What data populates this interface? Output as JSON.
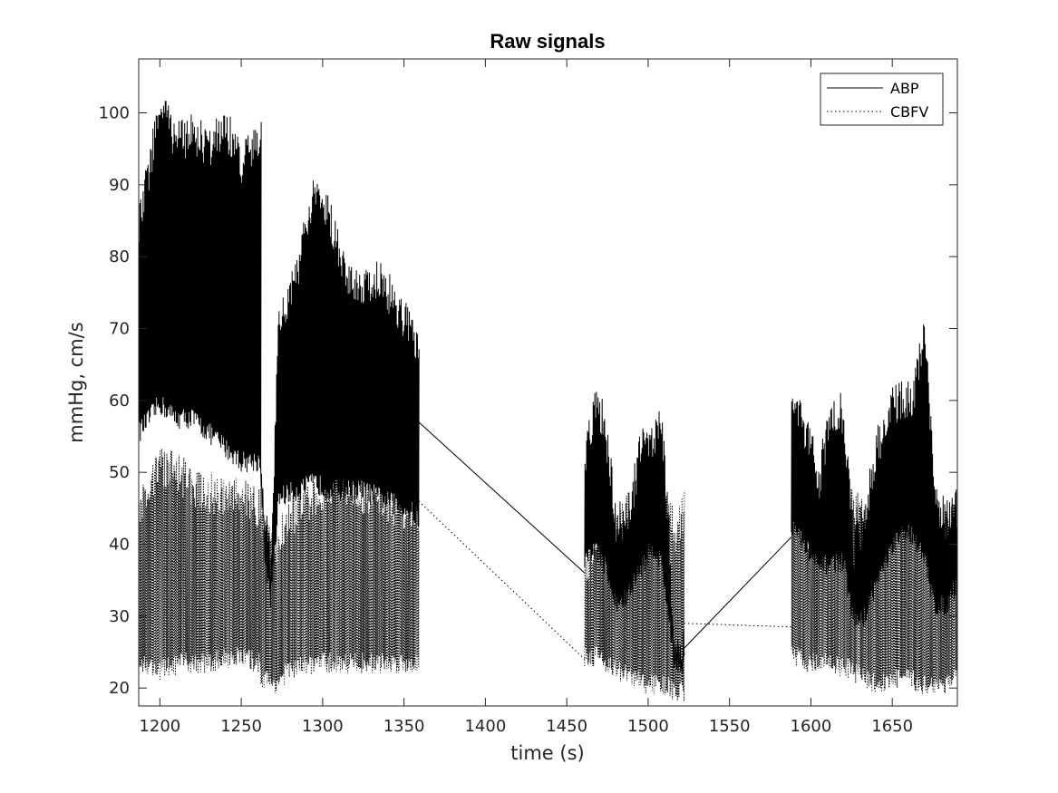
{
  "chart_data": {
    "type": "line",
    "title": "Raw signals",
    "xlabel": "time (s)",
    "ylabel": "mmHg, cm/s",
    "xlim": [
      1187,
      1690
    ],
    "ylim": [
      17.5,
      107.5
    ],
    "xticks": [
      1200,
      1250,
      1300,
      1350,
      1400,
      1450,
      1500,
      1550,
      1600,
      1650
    ],
    "yticks": [
      20,
      30,
      40,
      50,
      60,
      70,
      80,
      90,
      100
    ],
    "grid": false,
    "legend": {
      "placement": "top-right",
      "entries": [
        "ABP",
        "CBFV"
      ]
    },
    "series": [
      {
        "name": "ABP",
        "style": "solid",
        "color": "#000000",
        "segments": [
          {
            "t_start": 1187,
            "t_end": 1262,
            "env": [
              [
                1187,
                54,
                87
              ],
              [
                1200,
                58,
                104
              ],
              [
                1210,
                56,
                99
              ],
              [
                1220,
                56,
                100
              ],
              [
                1230,
                54,
                98
              ],
              [
                1240,
                52,
                101
              ],
              [
                1250,
                50,
                96
              ],
              [
                1262,
                50,
                99
              ]
            ]
          },
          {
            "t_start": 1262,
            "t_end": 1272,
            "env": [
              [
                1262,
                50,
                52
              ],
              [
                1265,
                35,
                45
              ],
              [
                1268,
                31,
                40
              ],
              [
                1272,
                41,
                68
              ]
            ]
          },
          {
            "t_start": 1272,
            "t_end": 1359,
            "env": [
              [
                1272,
                45,
                72
              ],
              [
                1285,
                46,
                82
              ],
              [
                1295,
                47,
                92
              ],
              [
                1305,
                46,
                88
              ],
              [
                1315,
                46,
                80
              ],
              [
                1325,
                46,
                79
              ],
              [
                1335,
                45,
                80
              ],
              [
                1345,
                44,
                76
              ],
              [
                1355,
                43,
                72
              ],
              [
                1359,
                42,
                70
              ]
            ]
          },
          {
            "t_start": 1461,
            "t_end": 1522,
            "env": [
              [
                1461,
                36,
                54
              ],
              [
                1467,
                38,
                62
              ],
              [
                1473,
                36,
                60
              ],
              [
                1480,
                30,
                46
              ],
              [
                1487,
                31,
                46
              ],
              [
                1495,
                35,
                56
              ],
              [
                1503,
                38,
                58
              ],
              [
                1508,
                36,
                60
              ],
              [
                1512,
                30,
                46
              ],
              [
                1516,
                22,
                28
              ],
              [
                1522,
                22,
                29
              ]
            ]
          },
          {
            "t_start": 1588,
            "t_end": 1690,
            "env": [
              [
                1588,
                41,
                63
              ],
              [
                1597,
                38,
                58
              ],
              [
                1605,
                35,
                52
              ],
              [
                1612,
                36,
                62
              ],
              [
                1620,
                36,
                61
              ],
              [
                1626,
                28,
                42
              ],
              [
                1632,
                28,
                46
              ],
              [
                1640,
                33,
                56
              ],
              [
                1648,
                37,
                62
              ],
              [
                1656,
                40,
                63
              ],
              [
                1663,
                40,
                64
              ],
              [
                1670,
                36,
                72
              ],
              [
                1676,
                30,
                50
              ],
              [
                1683,
                30,
                46
              ],
              [
                1690,
                33,
                48
              ]
            ]
          }
        ],
        "connectors": [
          [
            [
              1359,
              57
            ],
            [
              1461,
              36
            ]
          ],
          [
            [
              1522,
              25.5
            ],
            [
              1588,
              41
            ]
          ]
        ]
      },
      {
        "name": "CBFV",
        "style": "dotted",
        "color": "#000000",
        "segments": [
          {
            "t_start": 1187,
            "t_end": 1262,
            "env": [
              [
                1187,
                22,
                48
              ],
              [
                1200,
                21,
                54
              ],
              [
                1215,
                22,
                52
              ],
              [
                1230,
                22,
                50
              ],
              [
                1245,
                23,
                50
              ],
              [
                1262,
                22,
                48
              ]
            ]
          },
          {
            "t_start": 1262,
            "t_end": 1359,
            "env": [
              [
                1262,
                20,
                46
              ],
              [
                1270,
                19,
                42
              ],
              [
                1280,
                21,
                47
              ],
              [
                1295,
                22,
                50
              ],
              [
                1310,
                22,
                52
              ],
              [
                1325,
                22,
                50
              ],
              [
                1340,
                22,
                49
              ],
              [
                1359,
                22,
                47
              ]
            ]
          },
          {
            "t_start": 1461,
            "t_end": 1522,
            "env": [
              [
                1461,
                23,
                40
              ],
              [
                1470,
                23,
                46
              ],
              [
                1480,
                21,
                44
              ],
              [
                1490,
                20,
                49
              ],
              [
                1500,
                19,
                46
              ],
              [
                1510,
                19,
                50
              ],
              [
                1516,
                18,
                44
              ],
              [
                1522,
                18,
                48
              ]
            ]
          },
          {
            "t_start": 1588,
            "t_end": 1690,
            "env": [
              [
                1588,
                23,
                48
              ],
              [
                1600,
                22,
                44
              ],
              [
                1612,
                22,
                48
              ],
              [
                1625,
                21,
                49
              ],
              [
                1640,
                19,
                44
              ],
              [
                1655,
                20,
                47
              ],
              [
                1670,
                19,
                45
              ],
              [
                1680,
                19,
                44
              ],
              [
                1690,
                20,
                47
              ]
            ]
          }
        ],
        "connectors": [
          [
            [
              1359,
              46
            ],
            [
              1461,
              24
            ]
          ],
          [
            [
              1522,
              29
            ],
            [
              1588,
              28.5
            ]
          ]
        ]
      }
    ]
  }
}
